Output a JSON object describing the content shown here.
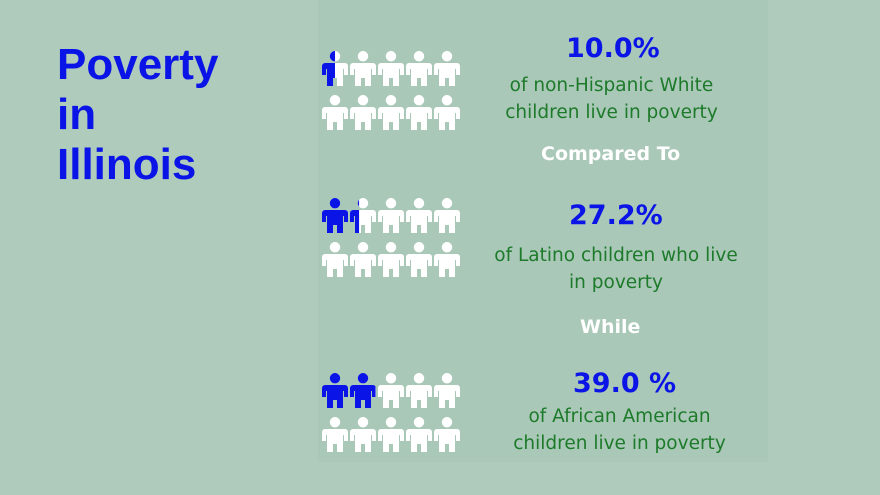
{
  "title": {
    "line1": "Poverty",
    "line2": "in",
    "line3": "Illinois"
  },
  "colors": {
    "highlight": "#0a14e6",
    "person": "#ffffff",
    "text_green": "#1d7a2a"
  },
  "groups": [
    {
      "percent": "10.0%",
      "desc_line1": "of non-Hispanic White",
      "desc_line2": "children live in poverty",
      "filled_fraction": 0.1
    },
    {
      "percent": "27.2%",
      "desc_line1": "of Latino children who live",
      "desc_line2": "in poverty",
      "filled_fraction": 0.272
    },
    {
      "percent": "39.0 %",
      "desc_line1": "of African American",
      "desc_line2": "children live in poverty",
      "filled_fraction": 0.39
    }
  ],
  "connectors": {
    "first": "Compared To",
    "second": "While"
  }
}
